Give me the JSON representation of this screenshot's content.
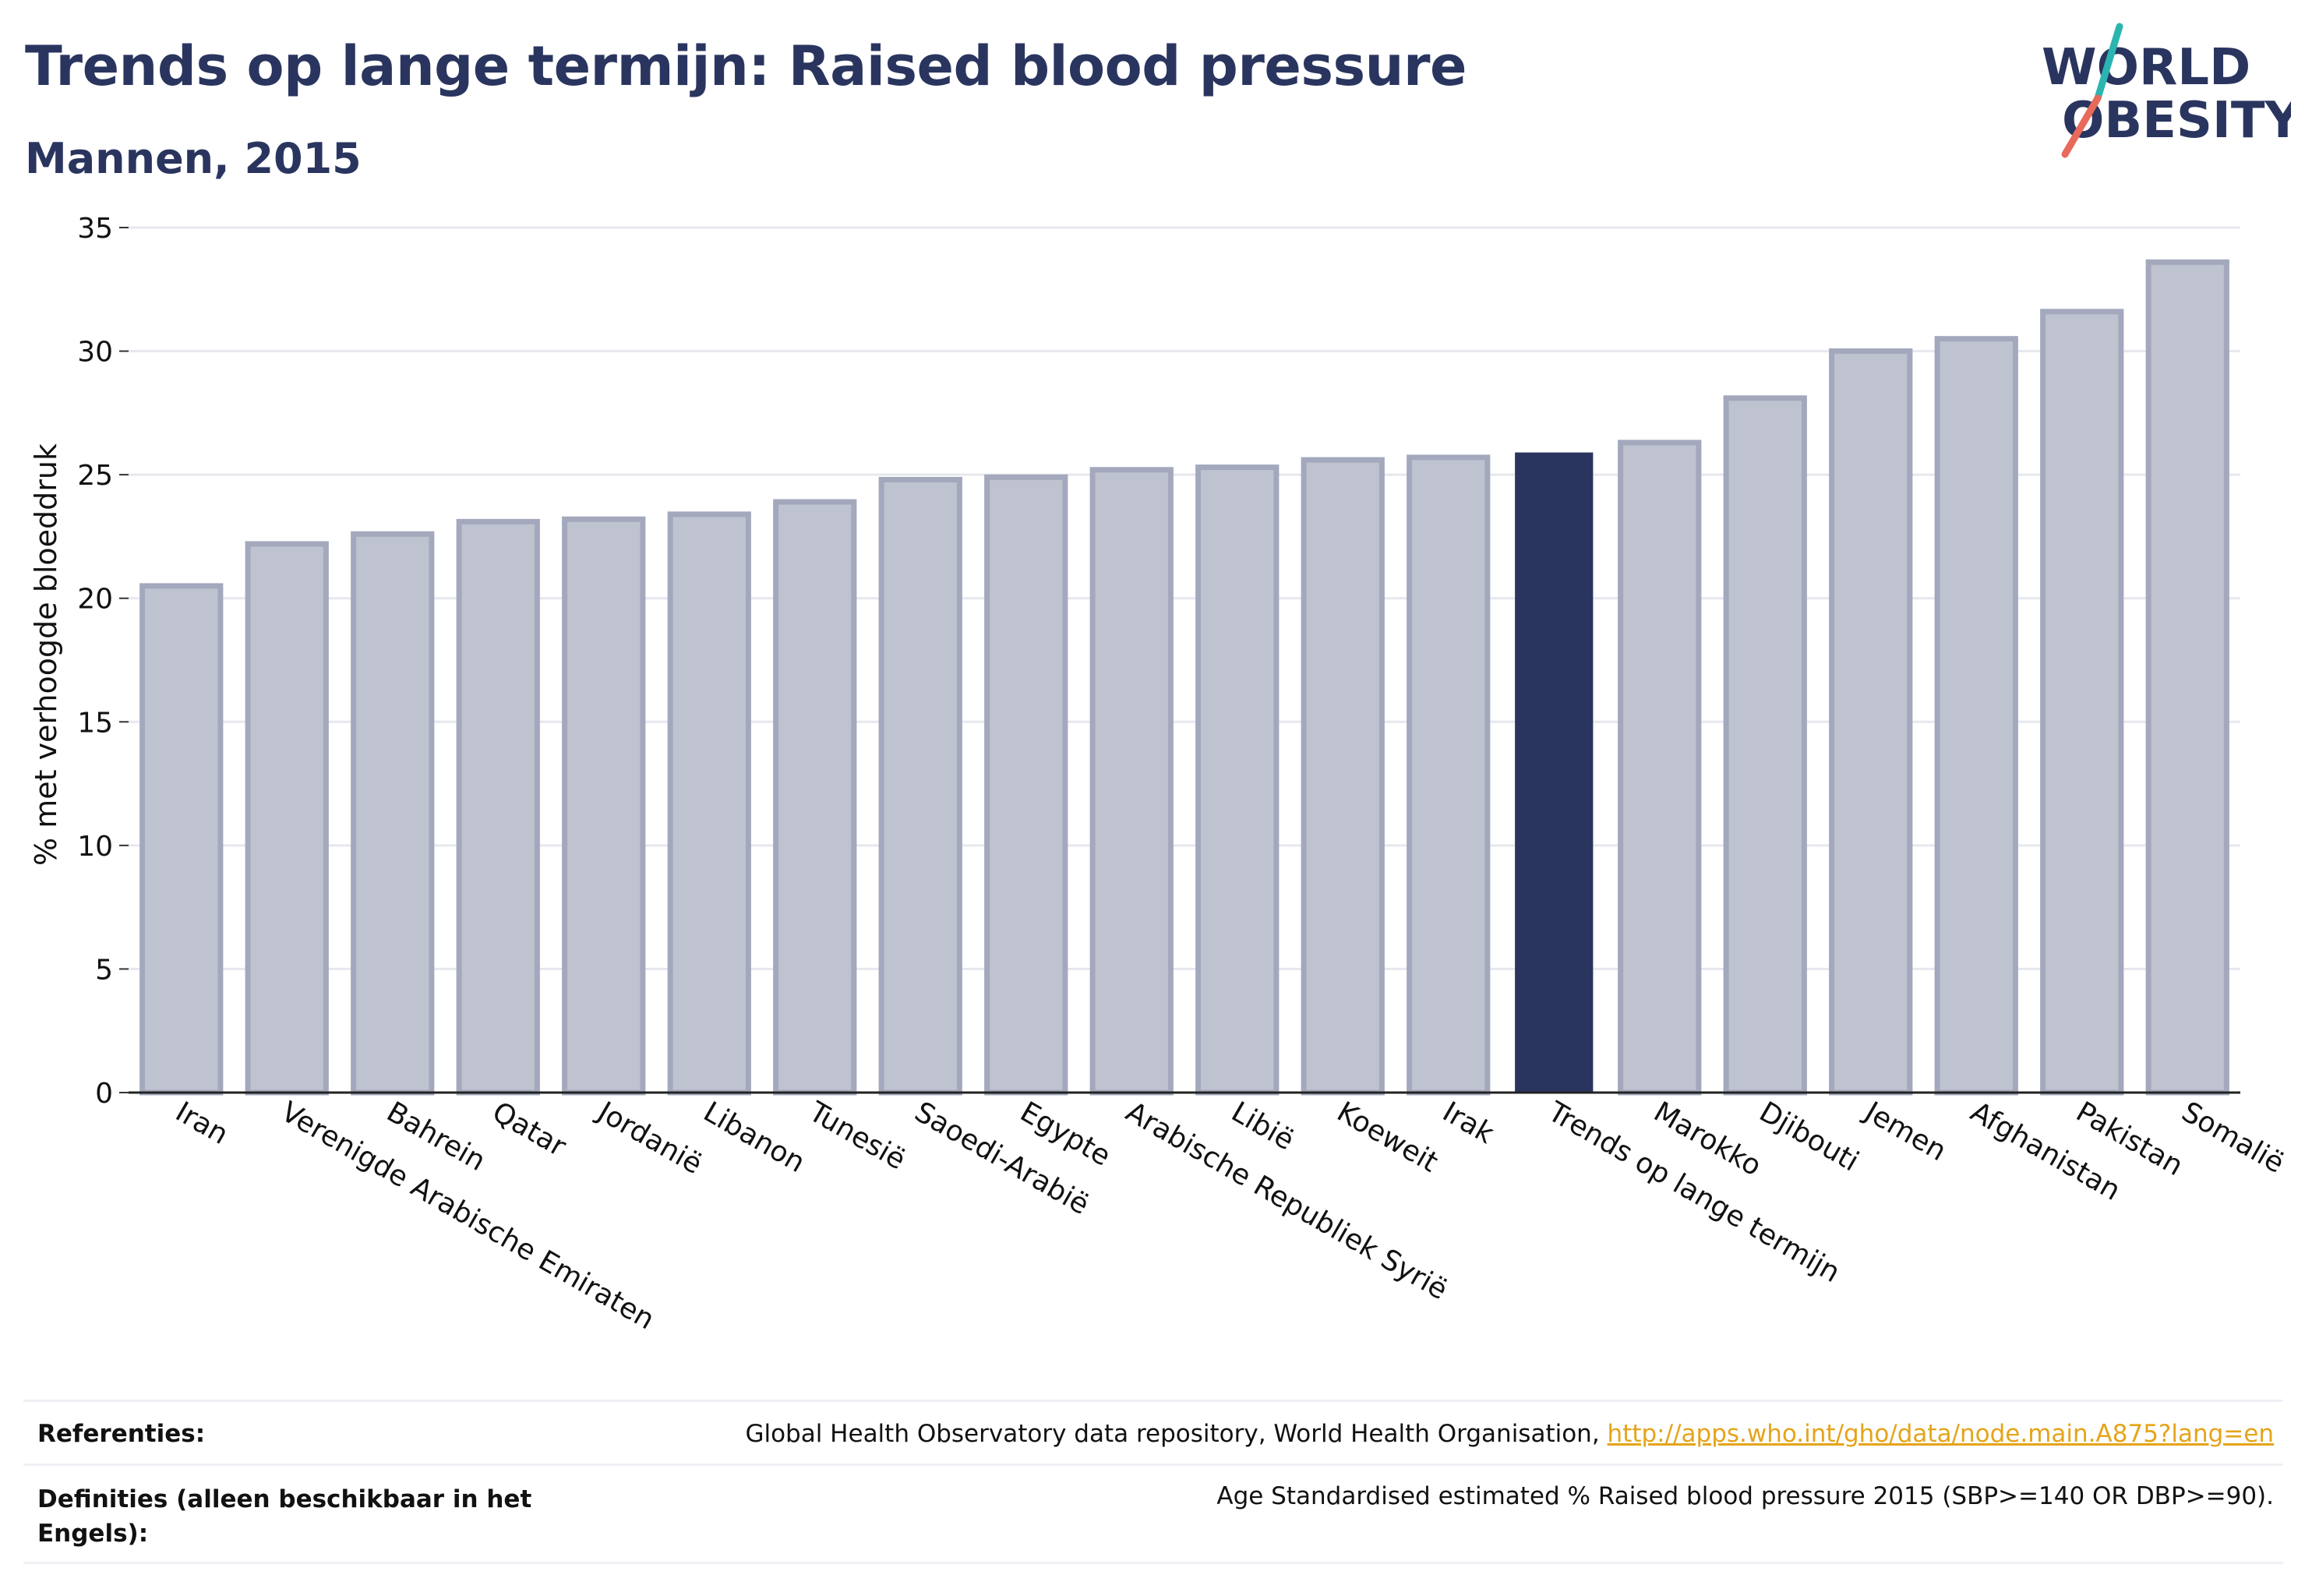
{
  "header": {
    "title": "Trends op lange termijn: Raised blood pressure",
    "subtitle": "Mannen, 2015"
  },
  "logo": {
    "line1": "WORLD",
    "line2": "OBESITY",
    "accent_teal": "#2bb5b0",
    "accent_coral": "#e86a5a"
  },
  "colors": {
    "bar_default": "#bfc3d0",
    "bar_default_border": "#a3a8bd",
    "bar_highlight": "#2a355f",
    "text_dark": "#2a355f",
    "grid": "#e6e8ee",
    "link": "#e5a41a"
  },
  "chart_data": {
    "type": "bar",
    "ylabel": "% met verhoogde bloeddruk",
    "ylim": [
      0,
      35
    ],
    "yticks": [
      0,
      5,
      10,
      15,
      20,
      25,
      30,
      35
    ],
    "grid": true,
    "categories": [
      "Iran",
      "Verenigde Arabische Emiraten",
      "Bahrein",
      "Qatar",
      "Jordanië",
      "Libanon",
      "Tunesië",
      "Saoedi-Arabië",
      "Egypte",
      "Arabische Republiek Syrië",
      "Libië",
      "Koeweit",
      "Irak",
      "Trends op lange termijn",
      "Marokko",
      "Djibouti",
      "Jemen",
      "Afghanistan",
      "Pakistan",
      "Somalië"
    ],
    "values": [
      20.5,
      22.2,
      22.6,
      23.1,
      23.2,
      23.4,
      23.9,
      24.8,
      24.9,
      25.2,
      25.3,
      25.6,
      25.7,
      25.9,
      26.3,
      28.1,
      30.0,
      30.5,
      31.6,
      33.6
    ],
    "highlight": "Trends op lange termijn"
  },
  "footer": {
    "references_label": "Referenties:",
    "references_text": "Global Health Observatory data repository, World Health Organisation, ",
    "references_link": "http://apps.who.int/gho/data/node.main.A875?lang=en",
    "definitions_label": "Definities (alleen beschikbaar in het Engels):",
    "definitions_text": "Age Standardised estimated % Raised blood pressure 2015 (SBP>=140 OR DBP>=90)."
  }
}
